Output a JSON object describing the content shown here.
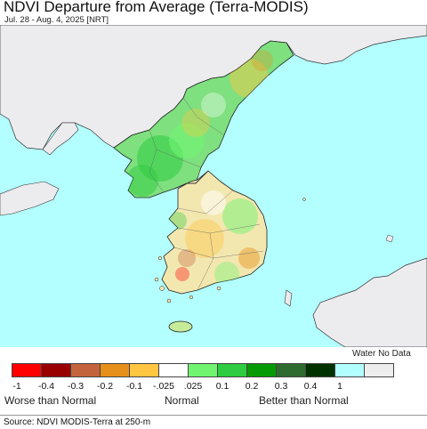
{
  "header": {
    "title": "NDVI Departure from Average (Terra-MODIS)",
    "subtitle": "Jul. 28 - Aug. 4, 2025 [NRT]"
  },
  "map": {
    "water_color": "#b3ffff",
    "foreign_land_color": "#ecebee",
    "no_data_color": "#eeeeee"
  },
  "legend": {
    "no_data_label": "Water No Data",
    "colors": [
      "#ff0000",
      "#990000",
      "#c4643c",
      "#e69019",
      "#ffc642",
      "#ffffff",
      "#71f571",
      "#2ecc40",
      "#079a07",
      "#2e6b2e",
      "#003200",
      "#b3ffff",
      "#eeeeee"
    ],
    "ticks": [
      "-1",
      "-0.4",
      "-0.3",
      "-0.2",
      "-0.1",
      "-.025",
      ".025",
      "0.1",
      "0.2",
      "0.3",
      "0.4",
      "1"
    ],
    "categories": [
      "Worse than Normal",
      "Normal",
      "Better than Normal"
    ]
  },
  "footer": {
    "source": "Source: NDVI MODIS-Terra at 250-m"
  }
}
